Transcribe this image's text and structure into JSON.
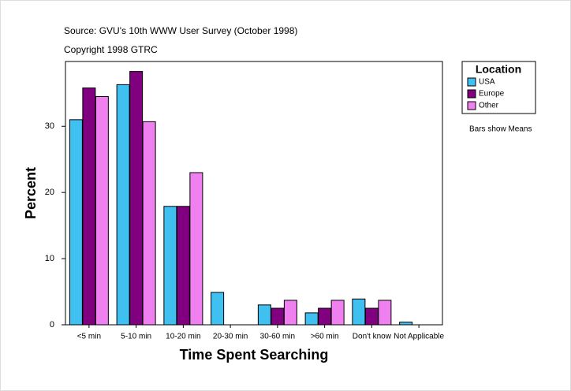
{
  "chart_data": {
    "type": "bar",
    "title": "Source: GVU's 10th WWW User Survey (October 1998)",
    "subtitle": "Copyright 1998 GTRC",
    "x_label": "Time Spent Searching",
    "y_label": "Percent",
    "annotation": "Bars show Means",
    "legend_title": "Location",
    "categories": [
      "<5 min",
      "5-10 min",
      "10-20 min",
      "20-30 min",
      "30-60 min",
      ">60 min",
      "Don't know",
      "Not Applicable"
    ],
    "series": [
      {
        "name": "USA",
        "color": "#40c0f0",
        "values": [
          31.0,
          36.3,
          17.9,
          4.9,
          3.0,
          1.8,
          3.9,
          0.4
        ]
      },
      {
        "name": "Europe",
        "color": "#800080",
        "values": [
          35.8,
          38.3,
          17.9,
          0,
          2.5,
          2.5,
          2.5,
          0
        ]
      },
      {
        "name": "Other",
        "color": "#f080f0",
        "values": [
          34.5,
          30.7,
          23.0,
          0,
          3.7,
          3.7,
          3.7,
          0
        ]
      }
    ],
    "ylim": [
      0,
      39.8
    ],
    "yticks": [
      0,
      10,
      20,
      30
    ]
  }
}
